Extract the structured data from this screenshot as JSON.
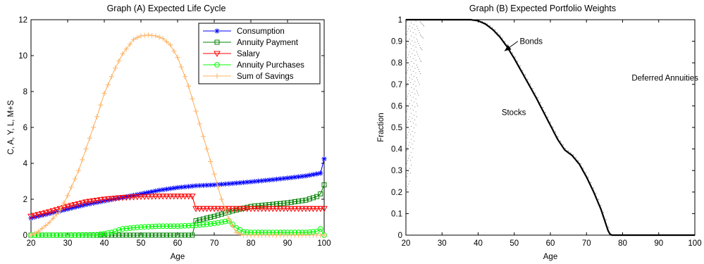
{
  "chart_data": [
    {
      "type": "line",
      "title": "Graph (A) Expected Life Cycle",
      "xlabel": "Age",
      "ylabel": "C, A, Y, L, M+S",
      "xlim": [
        20,
        100
      ],
      "ylim": [
        0,
        12
      ],
      "xticks": [
        20,
        30,
        40,
        50,
        60,
        70,
        80,
        90,
        100
      ],
      "yticks": [
        0,
        2,
        4,
        6,
        8,
        10,
        12
      ],
      "legend_position": "top-right",
      "series": [
        {
          "name": "Consumption",
          "color": "#0000ff",
          "marker": "asterisk",
          "x": [
            20,
            25,
            30,
            35,
            40,
            45,
            50,
            55,
            60,
            65,
            70,
            75,
            80,
            85,
            90,
            95,
            99,
            100
          ],
          "y": [
            0.95,
            1.2,
            1.45,
            1.7,
            1.9,
            2.1,
            2.3,
            2.5,
            2.65,
            2.75,
            2.8,
            2.88,
            2.97,
            3.07,
            3.18,
            3.3,
            3.45,
            4.25
          ]
        },
        {
          "name": "Annuity Payment",
          "color": "#008000",
          "marker": "square",
          "x": [
            20,
            30,
            40,
            50,
            60,
            64,
            65,
            70,
            75,
            80,
            85,
            90,
            95,
            98,
            99,
            100
          ],
          "y": [
            0,
            0,
            0,
            0,
            0,
            0,
            0.8,
            1.05,
            1.35,
            1.6,
            1.7,
            1.8,
            1.95,
            2.15,
            2.3,
            2.8
          ]
        },
        {
          "name": "Salary",
          "color": "#ff0000",
          "marker": "triangle-down",
          "x": [
            20,
            25,
            30,
            35,
            40,
            45,
            50,
            55,
            60,
            64,
            65,
            70,
            75,
            80,
            85,
            90,
            95,
            100
          ],
          "y": [
            1.05,
            1.3,
            1.6,
            1.85,
            2.0,
            2.1,
            2.15,
            2.17,
            2.17,
            2.17,
            1.48,
            1.48,
            1.48,
            1.48,
            1.48,
            1.48,
            1.48,
            1.48
          ]
        },
        {
          "name": "Annuity Purchases",
          "color": "#00ff00",
          "marker": "circle",
          "x": [
            20,
            30,
            38,
            42,
            45,
            50,
            55,
            60,
            65,
            70,
            74,
            76,
            78,
            80,
            85,
            90,
            95,
            98,
            99,
            100
          ],
          "y": [
            0,
            0,
            0.02,
            0.15,
            0.35,
            0.45,
            0.5,
            0.5,
            0.55,
            0.65,
            0.8,
            0.4,
            0.18,
            0.15,
            0.15,
            0.15,
            0.15,
            0.2,
            0.35,
            0.0
          ]
        },
        {
          "name": "Sum of Savings",
          "color": "#ffb366",
          "marker": "plus",
          "x": [
            20,
            22,
            25,
            28,
            30,
            33,
            35,
            38,
            40,
            43,
            45,
            48,
            50,
            52,
            54,
            56,
            58,
            60,
            63,
            65,
            68,
            70,
            72,
            74,
            76,
            78,
            80,
            90,
            100
          ],
          "y": [
            0,
            0.2,
            0.7,
            1.4,
            2.2,
            3.6,
            4.8,
            6.6,
            7.9,
            9.3,
            10.1,
            10.9,
            11.1,
            11.15,
            11.1,
            10.95,
            10.6,
            9.9,
            8.3,
            6.9,
            4.8,
            3.4,
            2.0,
            0.9,
            0.15,
            0,
            0,
            0,
            0
          ]
        }
      ]
    },
    {
      "type": "area",
      "title": "Graph (B) Expected Portfolio Weights",
      "xlabel": "Age",
      "ylabel": "Fraction",
      "xlim": [
        20,
        100
      ],
      "ylim": [
        0,
        1
      ],
      "xticks": [
        20,
        30,
        40,
        50,
        60,
        70,
        80,
        90,
        100
      ],
      "yticks": [
        0,
        0.1,
        0.2,
        0.3,
        0.4,
        0.5,
        0.6,
        0.7,
        0.8,
        0.9,
        1
      ],
      "annotations": [
        {
          "text": "Bonds",
          "x": 51.5,
          "y": 0.9
        },
        {
          "text": "Deferred Annuities",
          "x": 82.5,
          "y": 0.73
        },
        {
          "text": "Stocks",
          "x": 46.5,
          "y": 0.57
        }
      ],
      "series": [
        {
          "name": "Stocks",
          "color": "#000000",
          "x": [
            20,
            30,
            35,
            38,
            40,
            42,
            44,
            46,
            48,
            50,
            52,
            54,
            56,
            58,
            60,
            62,
            64,
            66,
            68,
            70,
            72,
            74,
            75,
            76,
            76.5,
            77,
            80,
            90,
            100
          ],
          "y": [
            1,
            1,
            1,
            1,
            0.995,
            0.98,
            0.955,
            0.92,
            0.875,
            0.82,
            0.76,
            0.7,
            0.64,
            0.575,
            0.51,
            0.445,
            0.395,
            0.37,
            0.33,
            0.27,
            0.2,
            0.12,
            0.07,
            0.02,
            0.005,
            0,
            0,
            0,
            0
          ]
        },
        {
          "name": "Bonds",
          "color": "#000000",
          "x": [
            20,
            21,
            22,
            23,
            24,
            25
          ],
          "y": [
            0.2,
            0.25,
            0.4,
            0.55,
            0.75,
            0.97
          ]
        }
      ]
    }
  ]
}
